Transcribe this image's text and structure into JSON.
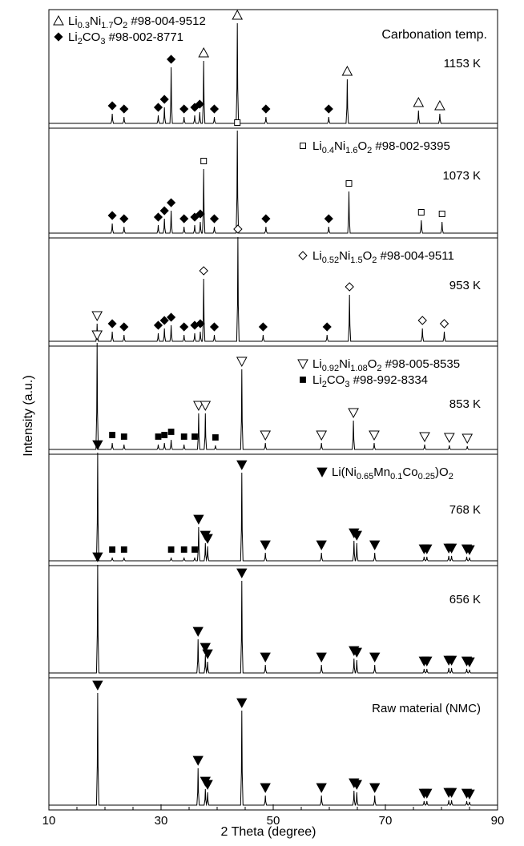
{
  "chart_data": {
    "type": "line",
    "xlabel": "2 Theta (degree)",
    "ylabel": "Intensity (a.u.)",
    "xlim": [
      10,
      90
    ],
    "x_ticks": [
      "10",
      "30",
      "50",
      "70",
      "90"
    ],
    "header_legend": [
      {
        "marker": "triangle-up",
        "parts": [
          [
            "Li",
            "n"
          ],
          [
            "0.3",
            "sub"
          ],
          [
            "Ni",
            "n"
          ],
          [
            "1.7",
            "sub"
          ],
          [
            "O",
            "n"
          ],
          [
            "2",
            "sub"
          ],
          [
            " #98-004-9512",
            "n"
          ]
        ]
      },
      {
        "marker": "diamond",
        "parts": [
          [
            "Li",
            "n"
          ],
          [
            "2",
            "sub"
          ],
          [
            "CO",
            "n"
          ],
          [
            "3",
            "sub"
          ],
          [
            "  #98-002-8771",
            "n"
          ]
        ]
      }
    ],
    "panels": [
      {
        "label": "1153 K",
        "annotation": "Carbonation temp.",
        "legend": [],
        "peaks": [
          [
            21.3,
            12
          ],
          [
            23.4,
            8
          ],
          [
            29.5,
            10
          ],
          [
            30.6,
            20
          ],
          [
            31.8,
            70
          ],
          [
            34.1,
            8
          ],
          [
            36.0,
            10
          ],
          [
            36.9,
            14
          ],
          [
            37.6,
            78
          ],
          [
            39.5,
            8
          ],
          [
            43.6,
            125
          ],
          [
            48.7,
            8
          ],
          [
            59.9,
            8
          ],
          [
            63.2,
            55
          ],
          [
            75.9,
            16
          ],
          [
            79.7,
            12
          ]
        ],
        "markers": [
          {
            "shape": "diamond",
            "x": [
              21.3,
              23.4,
              29.5,
              30.6,
              31.8,
              34.1,
              36.0,
              36.9,
              39.5,
              48.7,
              59.9
            ],
            "h": [
              12,
              8,
              10,
              20,
              70,
              8,
              10,
              14,
              8,
              8,
              8
            ]
          },
          {
            "shape": "triangle-up",
            "x": [
              37.6,
              43.6,
              63.2,
              75.9,
              79.7
            ],
            "h": [
              78,
              125,
              55,
              16,
              12
            ]
          }
        ]
      },
      {
        "label": "1073 K",
        "annotation": "",
        "legend": [
          {
            "marker": "square-open",
            "parts": [
              [
                "Li",
                "n"
              ],
              [
                "0.4",
                "sub"
              ],
              [
                "Ni",
                "n"
              ],
              [
                "1.6",
                "sub"
              ],
              [
                "O",
                "n"
              ],
              [
                "2",
                "sub"
              ],
              [
                " #98-002-9395",
                "n"
              ]
            ]
          }
        ],
        "peaks": [
          [
            21.3,
            12
          ],
          [
            23.4,
            8
          ],
          [
            29.5,
            10
          ],
          [
            30.6,
            18
          ],
          [
            31.8,
            28
          ],
          [
            34.1,
            8
          ],
          [
            36.0,
            10
          ],
          [
            37.0,
            14
          ],
          [
            37.6,
            80
          ],
          [
            39.5,
            8
          ],
          [
            43.6,
            128
          ],
          [
            48.7,
            8
          ],
          [
            59.9,
            8
          ],
          [
            63.5,
            52
          ],
          [
            76.4,
            16
          ],
          [
            80.1,
            14
          ]
        ],
        "markers": [
          {
            "shape": "diamond",
            "x": [
              21.3,
              23.4,
              29.5,
              30.6,
              31.8,
              34.1,
              36.0,
              37.0,
              39.5,
              48.7,
              59.9
            ],
            "h": [
              12,
              8,
              10,
              18,
              28,
              8,
              10,
              14,
              8,
              8,
              8
            ]
          },
          {
            "shape": "square-open",
            "x": [
              37.6,
              43.6,
              63.5,
              76.4,
              80.1
            ],
            "h": [
              80,
              128,
              52,
              16,
              14
            ]
          }
        ]
      },
      {
        "label": "953 K",
        "annotation": "",
        "legend": [
          {
            "marker": "diamond-open",
            "parts": [
              [
                "Li",
                "n"
              ],
              [
                "0.52",
                "sub"
              ],
              [
                "Ni",
                "n"
              ],
              [
                "1.5",
                "sub"
              ],
              [
                "O",
                "n"
              ],
              [
                "2",
                "sub"
              ],
              [
                " #98-004-9511",
                "n"
              ]
            ]
          }
        ],
        "peaks": [
          [
            18.6,
            22
          ],
          [
            21.3,
            12
          ],
          [
            23.4,
            8
          ],
          [
            29.5,
            10
          ],
          [
            30.6,
            16
          ],
          [
            31.8,
            20
          ],
          [
            34.1,
            8
          ],
          [
            36.0,
            10
          ],
          [
            37.0,
            12
          ],
          [
            37.6,
            78
          ],
          [
            39.5,
            8
          ],
          [
            43.7,
            130
          ],
          [
            48.2,
            8
          ],
          [
            59.6,
            8
          ],
          [
            63.6,
            58
          ],
          [
            76.6,
            16
          ],
          [
            80.5,
            12
          ]
        ],
        "markers": [
          {
            "shape": "triangle-down-open",
            "x": [
              18.6
            ],
            "h": [
              22
            ]
          },
          {
            "shape": "diamond",
            "x": [
              21.3,
              23.4,
              29.5,
              30.6,
              31.8,
              34.1,
              36.0,
              37.0,
              39.5,
              48.2,
              59.6
            ],
            "h": [
              12,
              8,
              10,
              16,
              20,
              8,
              10,
              12,
              8,
              8,
              8
            ]
          },
          {
            "shape": "diamond-open",
            "x": [
              37.6,
              43.7,
              63.6,
              76.6,
              80.5
            ],
            "h": [
              78,
              130,
              58,
              16,
              12
            ]
          }
        ]
      },
      {
        "label": "853 K",
        "annotation": "",
        "legend": [
          {
            "marker": "triangle-down-open",
            "parts": [
              [
                "Li",
                "n"
              ],
              [
                "0.92",
                "sub"
              ],
              [
                "Ni",
                "n"
              ],
              [
                "1.08",
                "sub"
              ],
              [
                "O",
                "n"
              ],
              [
                "2",
                "sub"
              ],
              [
                " #98-005-8535",
                "n"
              ]
            ]
          },
          {
            "marker": "square",
            "parts": [
              [
                "Li",
                "n"
              ],
              [
                "2",
                "sub"
              ],
              [
                "CO",
                "n"
              ],
              [
                "3",
                "sub"
              ],
              [
                "  #98-992-8334",
                "n"
              ]
            ]
          }
        ],
        "peaks": [
          [
            18.6,
            133
          ],
          [
            21.3,
            8
          ],
          [
            23.4,
            6
          ],
          [
            29.5,
            6
          ],
          [
            30.6,
            8
          ],
          [
            31.8,
            12
          ],
          [
            34.1,
            6
          ],
          [
            36.7,
            45
          ],
          [
            37.9,
            45
          ],
          [
            39.7,
            5
          ],
          [
            44.4,
            100
          ],
          [
            48.6,
            8
          ],
          [
            58.6,
            8
          ],
          [
            64.3,
            36
          ],
          [
            68.0,
            8
          ],
          [
            77.0,
            6
          ],
          [
            81.4,
            5
          ],
          [
            84.6,
            4
          ]
        ],
        "markers": [
          {
            "shape": "square",
            "x": [
              21.3,
              23.4,
              29.5,
              30.6,
              31.8,
              34.1,
              36.0,
              39.7
            ],
            "h": [
              8,
              6,
              6,
              8,
              12,
              6,
              6,
              5
            ]
          },
          {
            "shape": "triangle-down-open",
            "x": [
              18.6,
              36.7,
              37.9,
              44.4,
              48.6,
              58.6,
              64.3,
              68.0,
              77.0,
              81.4,
              84.6
            ],
            "h": [
              133,
              45,
              45,
              100,
              8,
              8,
              36,
              8,
              6,
              5,
              4
            ]
          }
        ]
      },
      {
        "label": "768 K",
        "annotation": "",
        "legend": [
          {
            "marker": "triangle-down",
            "parts": [
              [
                "Li(Ni",
                "n"
              ],
              [
                "0.65",
                "sub"
              ],
              [
                "Mn",
                "n"
              ],
              [
                "0.1",
                "sub"
              ],
              [
                "Co",
                "n"
              ],
              [
                "0.25",
                "sub"
              ],
              [
                ")O",
                "n"
              ],
              [
                "2",
                "sub"
              ]
            ]
          }
        ],
        "peaks": [
          [
            18.7,
            135
          ],
          [
            21.3,
            4
          ],
          [
            23.4,
            4
          ],
          [
            31.8,
            4
          ],
          [
            34.1,
            4
          ],
          [
            36.0,
            4
          ],
          [
            36.7,
            42
          ],
          [
            37.9,
            22
          ],
          [
            38.3,
            18
          ],
          [
            44.4,
            110
          ],
          [
            48.6,
            10
          ],
          [
            58.6,
            10
          ],
          [
            64.4,
            25
          ],
          [
            64.9,
            22
          ],
          [
            68.1,
            10
          ],
          [
            76.9,
            5
          ],
          [
            77.4,
            5
          ],
          [
            81.3,
            6
          ],
          [
            81.8,
            6
          ],
          [
            84.5,
            5
          ],
          [
            85.0,
            4
          ]
        ],
        "markers": [
          {
            "shape": "square",
            "x": [
              21.3,
              23.4,
              31.8,
              34.1,
              36.0
            ],
            "h": [
              4,
              4,
              4,
              4,
              4
            ]
          },
          {
            "shape": "triangle-down",
            "x": [
              18.7,
              36.7,
              37.9,
              38.3,
              44.4,
              48.6,
              58.6,
              64.4,
              64.9,
              68.1,
              76.9,
              77.4,
              81.3,
              81.8,
              84.5,
              85.0
            ],
            "h": [
              135,
              42,
              22,
              18,
              110,
              10,
              10,
              25,
              22,
              10,
              5,
              5,
              6,
              6,
              5,
              4
            ]
          }
        ]
      },
      {
        "label": "656 K",
        "annotation": "",
        "legend": [],
        "peaks": [
          [
            18.7,
            135
          ],
          [
            36.6,
            42
          ],
          [
            37.9,
            22
          ],
          [
            38.3,
            14
          ],
          [
            44.4,
            115
          ],
          [
            48.6,
            10
          ],
          [
            58.6,
            10
          ],
          [
            64.4,
            18
          ],
          [
            64.9,
            16
          ],
          [
            68.1,
            10
          ],
          [
            76.9,
            5
          ],
          [
            77.4,
            5
          ],
          [
            81.3,
            6
          ],
          [
            81.8,
            6
          ],
          [
            84.5,
            5
          ],
          [
            85.0,
            4
          ]
        ],
        "markers": [
          {
            "shape": "triangle-down",
            "x": [
              18.7,
              36.6,
              37.9,
              38.3,
              44.4,
              48.6,
              58.6,
              64.4,
              64.9,
              68.1,
              76.9,
              77.4,
              81.3,
              81.8,
              84.5,
              85.0
            ],
            "h": [
              135,
              42,
              22,
              14,
              115,
              10,
              10,
              18,
              16,
              10,
              5,
              5,
              6,
              6,
              5,
              4
            ]
          }
        ]
      },
      {
        "label": "Raw material (NMC)",
        "annotation": "",
        "legend": [],
        "peaks": [
          [
            18.7,
            140
          ],
          [
            36.6,
            46
          ],
          [
            37.9,
            20
          ],
          [
            38.3,
            16
          ],
          [
            44.4,
            118
          ],
          [
            48.6,
            12
          ],
          [
            58.6,
            12
          ],
          [
            64.4,
            18
          ],
          [
            64.9,
            16
          ],
          [
            68.1,
            12
          ],
          [
            76.9,
            5
          ],
          [
            77.4,
            5
          ],
          [
            81.3,
            6
          ],
          [
            81.8,
            6
          ],
          [
            84.5,
            5
          ],
          [
            85.0,
            4
          ]
        ],
        "markers": [
          {
            "shape": "triangle-down",
            "x": [
              18.7,
              36.6,
              37.9,
              38.3,
              44.4,
              48.6,
              58.6,
              64.4,
              64.9,
              68.1,
              76.9,
              77.4,
              81.3,
              81.8,
              84.5,
              85.0
            ],
            "h": [
              140,
              46,
              20,
              16,
              118,
              12,
              12,
              18,
              16,
              12,
              5,
              5,
              6,
              6,
              5,
              4
            ]
          }
        ]
      }
    ]
  }
}
